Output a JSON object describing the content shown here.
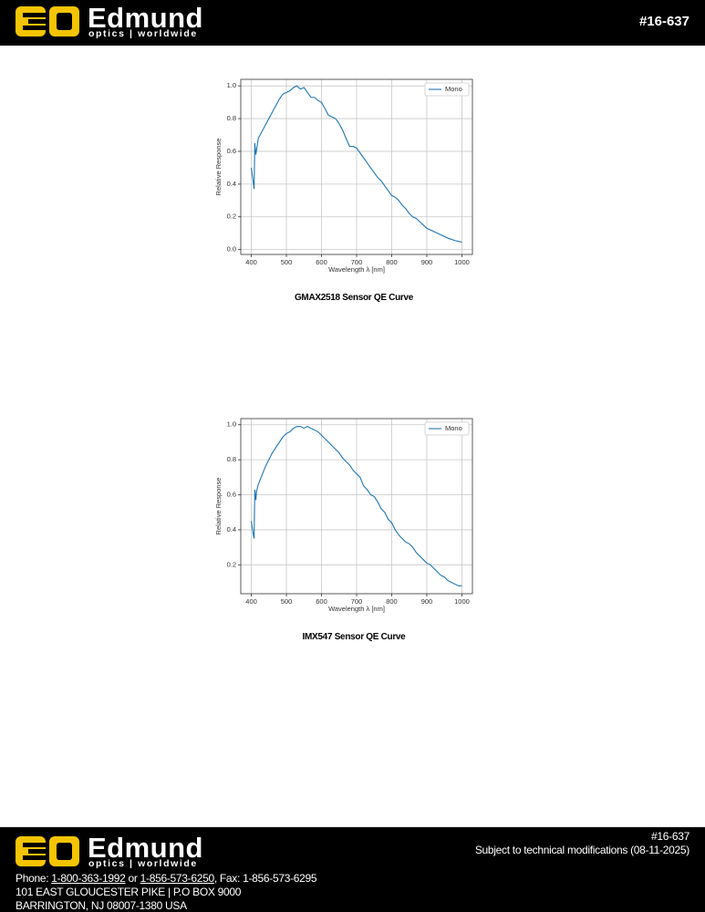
{
  "header": {
    "brand": "Edmund",
    "tagline": "optics | worldwide",
    "doc_number": "#16-637"
  },
  "chart_data": [
    {
      "type": "line",
      "caption": "GMAX2518 Sensor QE Curve",
      "x_label": "Wavelength λ [nm]",
      "y_label": "Relative Response",
      "x": [
        400,
        405,
        408,
        410,
        413,
        420,
        430,
        440,
        450,
        460,
        470,
        480,
        490,
        500,
        510,
        520,
        530,
        540,
        550,
        560,
        570,
        580,
        590,
        600,
        610,
        620,
        630,
        640,
        650,
        660,
        670,
        680,
        690,
        700,
        710,
        720,
        730,
        740,
        750,
        760,
        770,
        780,
        790,
        800,
        810,
        820,
        830,
        840,
        850,
        860,
        870,
        880,
        890,
        900,
        920,
        940,
        960,
        980,
        1000
      ],
      "series": [
        {
          "name": "Mono",
          "color": "#1f77b4",
          "values": [
            0.5,
            0.42,
            0.37,
            0.65,
            0.58,
            0.68,
            0.72,
            0.76,
            0.8,
            0.84,
            0.88,
            0.92,
            0.95,
            0.96,
            0.97,
            0.99,
            1.0,
            0.98,
            0.99,
            0.96,
            0.93,
            0.93,
            0.91,
            0.9,
            0.86,
            0.82,
            0.81,
            0.8,
            0.77,
            0.73,
            0.68,
            0.63,
            0.63,
            0.62,
            0.59,
            0.56,
            0.53,
            0.5,
            0.47,
            0.44,
            0.42,
            0.39,
            0.36,
            0.33,
            0.32,
            0.3,
            0.27,
            0.25,
            0.22,
            0.2,
            0.19,
            0.17,
            0.15,
            0.13,
            0.11,
            0.09,
            0.07,
            0.055,
            0.045
          ]
        }
      ],
      "xlim": [
        370,
        1030
      ],
      "ylim": [
        -0.03,
        1.04
      ],
      "xticks": [
        400,
        500,
        600,
        700,
        800,
        900,
        1000
      ],
      "yticks": [
        {
          "value": 0,
          "label": "0.0"
        },
        0.2,
        0.4,
        0.6,
        0.8,
        {
          "value": 1,
          "label": "1.0"
        }
      ],
      "grid": true,
      "legend": "upper right"
    },
    {
      "type": "line",
      "caption": "IMX547 Sensor QE Curve",
      "x_label": "Wavelength λ [nm]",
      "y_label": "Relative Response",
      "x": [
        400,
        405,
        408,
        410,
        413,
        415,
        420,
        430,
        440,
        450,
        460,
        470,
        480,
        490,
        500,
        510,
        520,
        530,
        540,
        550,
        560,
        570,
        580,
        590,
        600,
        610,
        620,
        630,
        640,
        650,
        660,
        670,
        680,
        690,
        700,
        710,
        720,
        730,
        740,
        750,
        760,
        770,
        780,
        790,
        800,
        810,
        820,
        830,
        840,
        850,
        860,
        870,
        880,
        890,
        900,
        910,
        920,
        930,
        940,
        950,
        960,
        970,
        980,
        990,
        1000
      ],
      "series": [
        {
          "name": "Mono",
          "color": "#1f77b4",
          "values": [
            0.45,
            0.38,
            0.35,
            0.63,
            0.57,
            0.62,
            0.66,
            0.71,
            0.76,
            0.8,
            0.84,
            0.87,
            0.9,
            0.93,
            0.95,
            0.96,
            0.98,
            0.99,
            0.99,
            0.98,
            0.99,
            0.98,
            0.97,
            0.96,
            0.94,
            0.92,
            0.9,
            0.88,
            0.86,
            0.84,
            0.81,
            0.79,
            0.77,
            0.74,
            0.72,
            0.7,
            0.65,
            0.63,
            0.6,
            0.59,
            0.56,
            0.52,
            0.5,
            0.46,
            0.44,
            0.4,
            0.37,
            0.35,
            0.33,
            0.32,
            0.3,
            0.27,
            0.25,
            0.23,
            0.21,
            0.2,
            0.18,
            0.16,
            0.14,
            0.13,
            0.11,
            0.1,
            0.09,
            0.08,
            0.08
          ]
        }
      ],
      "xlim": [
        370,
        1030
      ],
      "ylim": [
        0.035,
        1.035
      ],
      "xticks": [
        400,
        500,
        600,
        700,
        800,
        900,
        1000
      ],
      "yticks": [
        0.2,
        0.4,
        0.6,
        0.8,
        {
          "value": 1,
          "label": "1.0"
        }
      ],
      "grid": true,
      "legend": "upper right"
    }
  ],
  "footer": {
    "brand": "Edmund",
    "tagline": "optics | worldwide",
    "doc_number": "#16-637",
    "notice": "Subject to technical modifications (08-11-2025)",
    "phone_label": "Phone: ",
    "phone_1": "1-800-363-1992",
    "phone_or": " or ",
    "phone_2": "1-856-573-6250",
    "fax": ", Fax: 1-856-573-6295",
    "address_1": "101 EAST GLOUCESTER PIKE | P.O BOX 9000",
    "address_2": "BARRINGTON, NJ 08007-1380 USA"
  }
}
